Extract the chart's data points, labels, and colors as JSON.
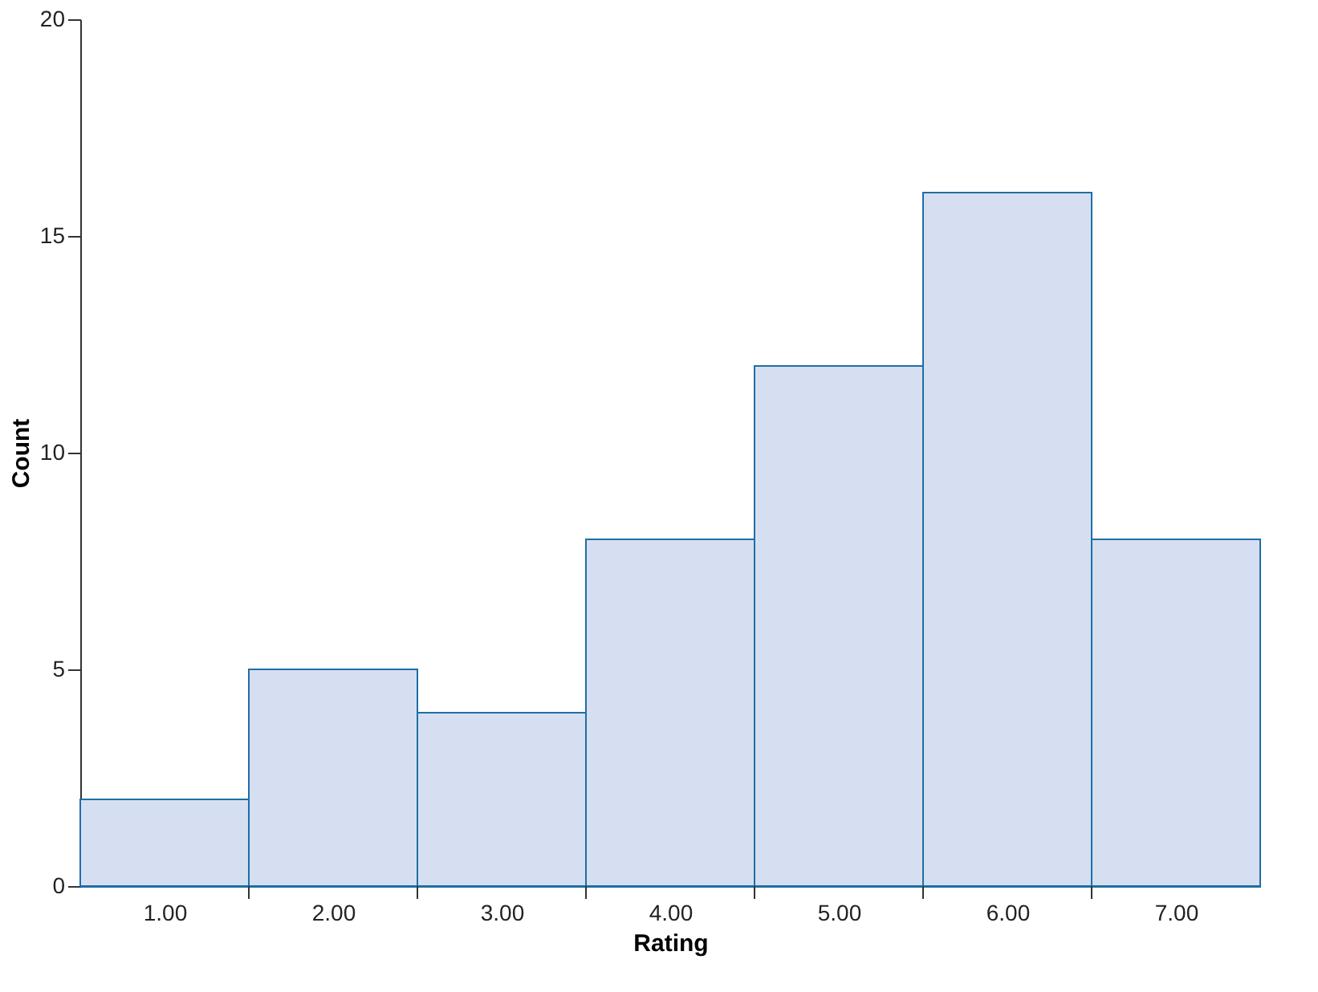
{
  "chart_data": {
    "type": "histogram",
    "xlabel": "Rating",
    "ylabel": "Count",
    "bins": [
      0.5,
      1.5,
      2.5,
      3.5,
      4.5,
      5.5,
      6.5,
      7.5
    ],
    "values": [
      2,
      5,
      4,
      8,
      12,
      16,
      8
    ],
    "color": "#d6dff1",
    "xlim": [
      0.5,
      7.5
    ],
    "xticks": [
      {
        "value": 1,
        "label": "1.00"
      },
      {
        "value": 1.5,
        "label": null
      },
      {
        "value": 2,
        "label": "2.00"
      },
      {
        "value": 2.5,
        "label": null
      },
      {
        "value": 3,
        "label": "3.00"
      },
      {
        "value": 3.5,
        "label": null
      },
      {
        "value": 4,
        "label": "4.00"
      },
      {
        "value": 4.5,
        "label": null
      },
      {
        "value": 5,
        "label": "5.00"
      },
      {
        "value": 5.5,
        "label": null
      },
      {
        "value": 6,
        "label": "6.00"
      },
      {
        "value": 6.5,
        "label": null
      },
      {
        "value": 7,
        "label": "7.00"
      }
    ],
    "ylim": [
      0,
      20
    ],
    "yticks": [
      0,
      5,
      10,
      15,
      20
    ],
    "grid": false
  }
}
